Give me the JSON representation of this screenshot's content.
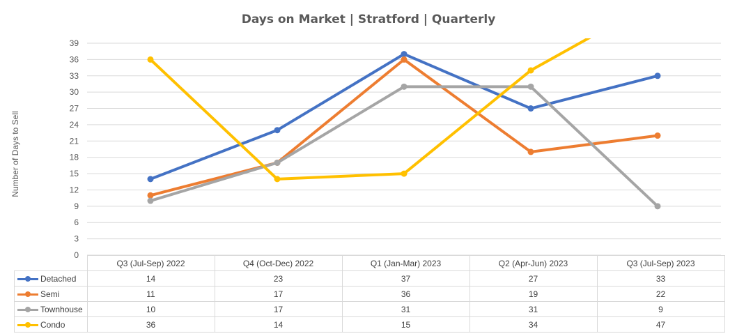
{
  "chart_data": {
    "type": "line",
    "title": "Days on Market | Stratford | Quarterly",
    "ylabel": "Number of Days to Sell",
    "xlabel": "",
    "categories": [
      "Q3 (Jul-Sep) 2022",
      "Q4 (Oct-Dec) 2022",
      "Q1 (Jan-Mar) 2023",
      "Q2 (Apr-Jun) 2023",
      "Q3 (Jul-Sep) 2023"
    ],
    "ylim": [
      0,
      39
    ],
    "yticks": [
      0,
      3,
      6,
      9,
      12,
      15,
      18,
      21,
      24,
      27,
      30,
      33,
      36,
      39
    ],
    "grid": true,
    "legend": "data-table",
    "series": [
      {
        "name": "Detached",
        "color": "#4472c4",
        "values": [
          14,
          23,
          37,
          27,
          33
        ]
      },
      {
        "name": "Semi",
        "color": "#ed7d31",
        "values": [
          11,
          17,
          36,
          19,
          22
        ]
      },
      {
        "name": "Townhouse",
        "color": "#a5a5a5",
        "values": [
          10,
          17,
          31,
          31,
          9
        ]
      },
      {
        "name": "Condo",
        "color": "#ffc000",
        "values": [
          36,
          14,
          15,
          34,
          47
        ]
      }
    ]
  }
}
